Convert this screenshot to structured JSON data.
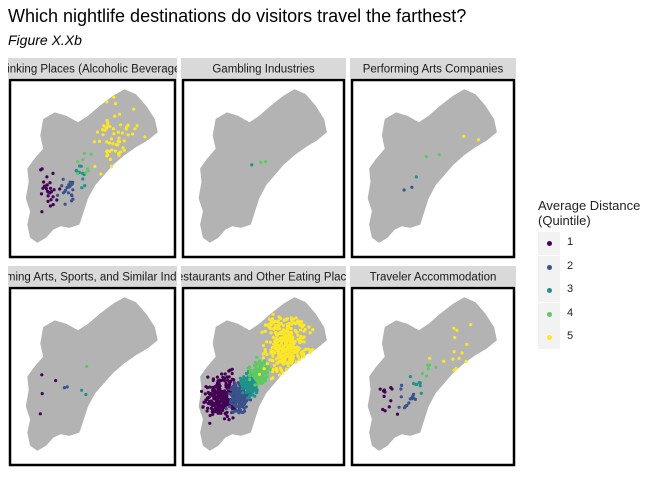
{
  "title": "Which nightlife destinations do visitors travel the farthest?",
  "subtitle": "Figure X.Xb",
  "chart_data": {
    "type": "scatter",
    "map": "city-outline",
    "facets": [
      {
        "label": "Drinking Places (Alcoholic Beverages)",
        "counts": [
          28,
          22,
          10,
          8,
          60
        ]
      },
      {
        "label": "Gambling Industries",
        "counts": [
          0,
          0,
          1,
          2,
          0
        ]
      },
      {
        "label": "Performing Arts Companies",
        "counts": [
          0,
          2,
          1,
          2,
          2
        ]
      },
      {
        "label": "Performing Arts, Sports, and Similar Industries",
        "counts": [
          4,
          2,
          2,
          1,
          0
        ]
      },
      {
        "label": "Restaurants and Other Eating Places",
        "counts": [
          260,
          160,
          110,
          110,
          340
        ]
      },
      {
        "label": "Traveler Accommodation",
        "counts": [
          12,
          14,
          8,
          6,
          14
        ]
      }
    ],
    "legend": {
      "title": "Average Distance\n(Quintile)",
      "position": "right",
      "items": [
        {
          "label": "1",
          "color": "#440154"
        },
        {
          "label": "2",
          "color": "#3b528b"
        },
        {
          "label": "3",
          "color": "#21918c"
        },
        {
          "label": "4",
          "color": "#5ec962"
        },
        {
          "label": "5",
          "color": "#fde725"
        }
      ]
    }
  }
}
